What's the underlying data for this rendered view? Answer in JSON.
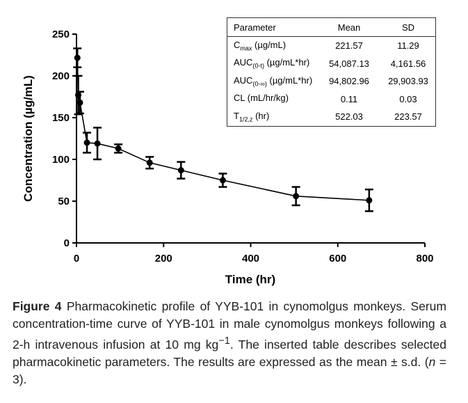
{
  "chart_data": {
    "type": "line",
    "xlabel": "Time (hr)",
    "ylabel": "Concentration (µg/mL)",
    "xlim": [
      0,
      800
    ],
    "ylim": [
      0,
      250
    ],
    "xticks": [
      "0",
      "200",
      "400",
      "600",
      "800"
    ],
    "yticks": [
      "0",
      "50",
      "100",
      "150",
      "200",
      "250"
    ],
    "grid": false,
    "error_bars": true,
    "color": "#000000",
    "points": [
      {
        "x": 2,
        "y": 221.6,
        "sd": 11.3
      },
      {
        "x": 4,
        "y": 177,
        "sd": 23
      },
      {
        "x": 8,
        "y": 168,
        "sd": 13
      },
      {
        "x": 24,
        "y": 120,
        "sd": 12
      },
      {
        "x": 48,
        "y": 119,
        "sd": 19
      },
      {
        "x": 96,
        "y": 113,
        "sd": 5
      },
      {
        "x": 168,
        "y": 96,
        "sd": 7
      },
      {
        "x": 240,
        "y": 87,
        "sd": 10
      },
      {
        "x": 336,
        "y": 75,
        "sd": 8
      },
      {
        "x": 504,
        "y": 56,
        "sd": 11
      },
      {
        "x": 672,
        "y": 51,
        "sd": 13
      }
    ]
  },
  "table": {
    "headers": [
      "Parameter",
      "Mean",
      "SD"
    ],
    "rows": [
      {
        "param": "C",
        "sub": "max",
        "unit": " (µg/mL)",
        "mean": "221.57",
        "sd": "11.29"
      },
      {
        "param": "AUC",
        "sub": "(0-t)",
        "unit": " (µg/mL*hr)",
        "mean": "54,087.13",
        "sd": "4,161.56"
      },
      {
        "param": "AUC",
        "sub": "(0-∞)",
        "unit": " (µg/mL*hr)",
        "mean": "94,802.96",
        "sd": "29,903.93"
      },
      {
        "param": "CL (mL/hr/kg)",
        "sub": "",
        "unit": "",
        "mean": "0.11",
        "sd": "0.03"
      },
      {
        "param": "T",
        "sub": "1/2,z",
        "unit": " (hr)",
        "mean": "522.03",
        "sd": "223.57"
      }
    ]
  },
  "caption": {
    "label": "Figure 4",
    "text1": " Pharmacokinetic profile of YYB-101 in cynomolgus monkeys. Serum concentration-time curve of YYB-101 in male cynomolgus monkeys following a 2-h intravenous infusion at 10 mg kg",
    "sup": "−1",
    "text2": ". The inserted table describes selected pharmacokinetic parameters. The results are expressed as the mean ± s.d. (",
    "n": "n",
    "text3": " = 3)."
  }
}
